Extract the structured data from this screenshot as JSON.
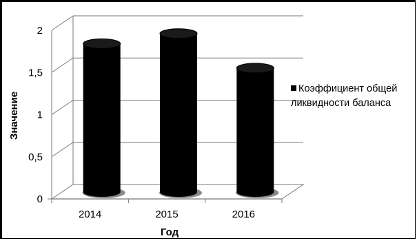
{
  "chart_data": {
    "type": "bar",
    "title": "",
    "xlabel": "Год",
    "ylabel": "Значение",
    "categories": [
      "2014",
      "2015",
      "2016"
    ],
    "series": [
      {
        "name": "Коэффициент общей ликвидности баланса",
        "values": [
          1.76,
          1.88,
          1.47
        ]
      }
    ],
    "ylim": [
      0,
      2
    ],
    "y_ticks": [
      "0",
      "0,5",
      "1",
      "1,5",
      "2"
    ],
    "legend_lines": [
      "Коэффициент общей",
      "ликвидности баланса"
    ],
    "legend_position": "right",
    "grid": true,
    "three_d": true,
    "bar_color": "#000000"
  }
}
